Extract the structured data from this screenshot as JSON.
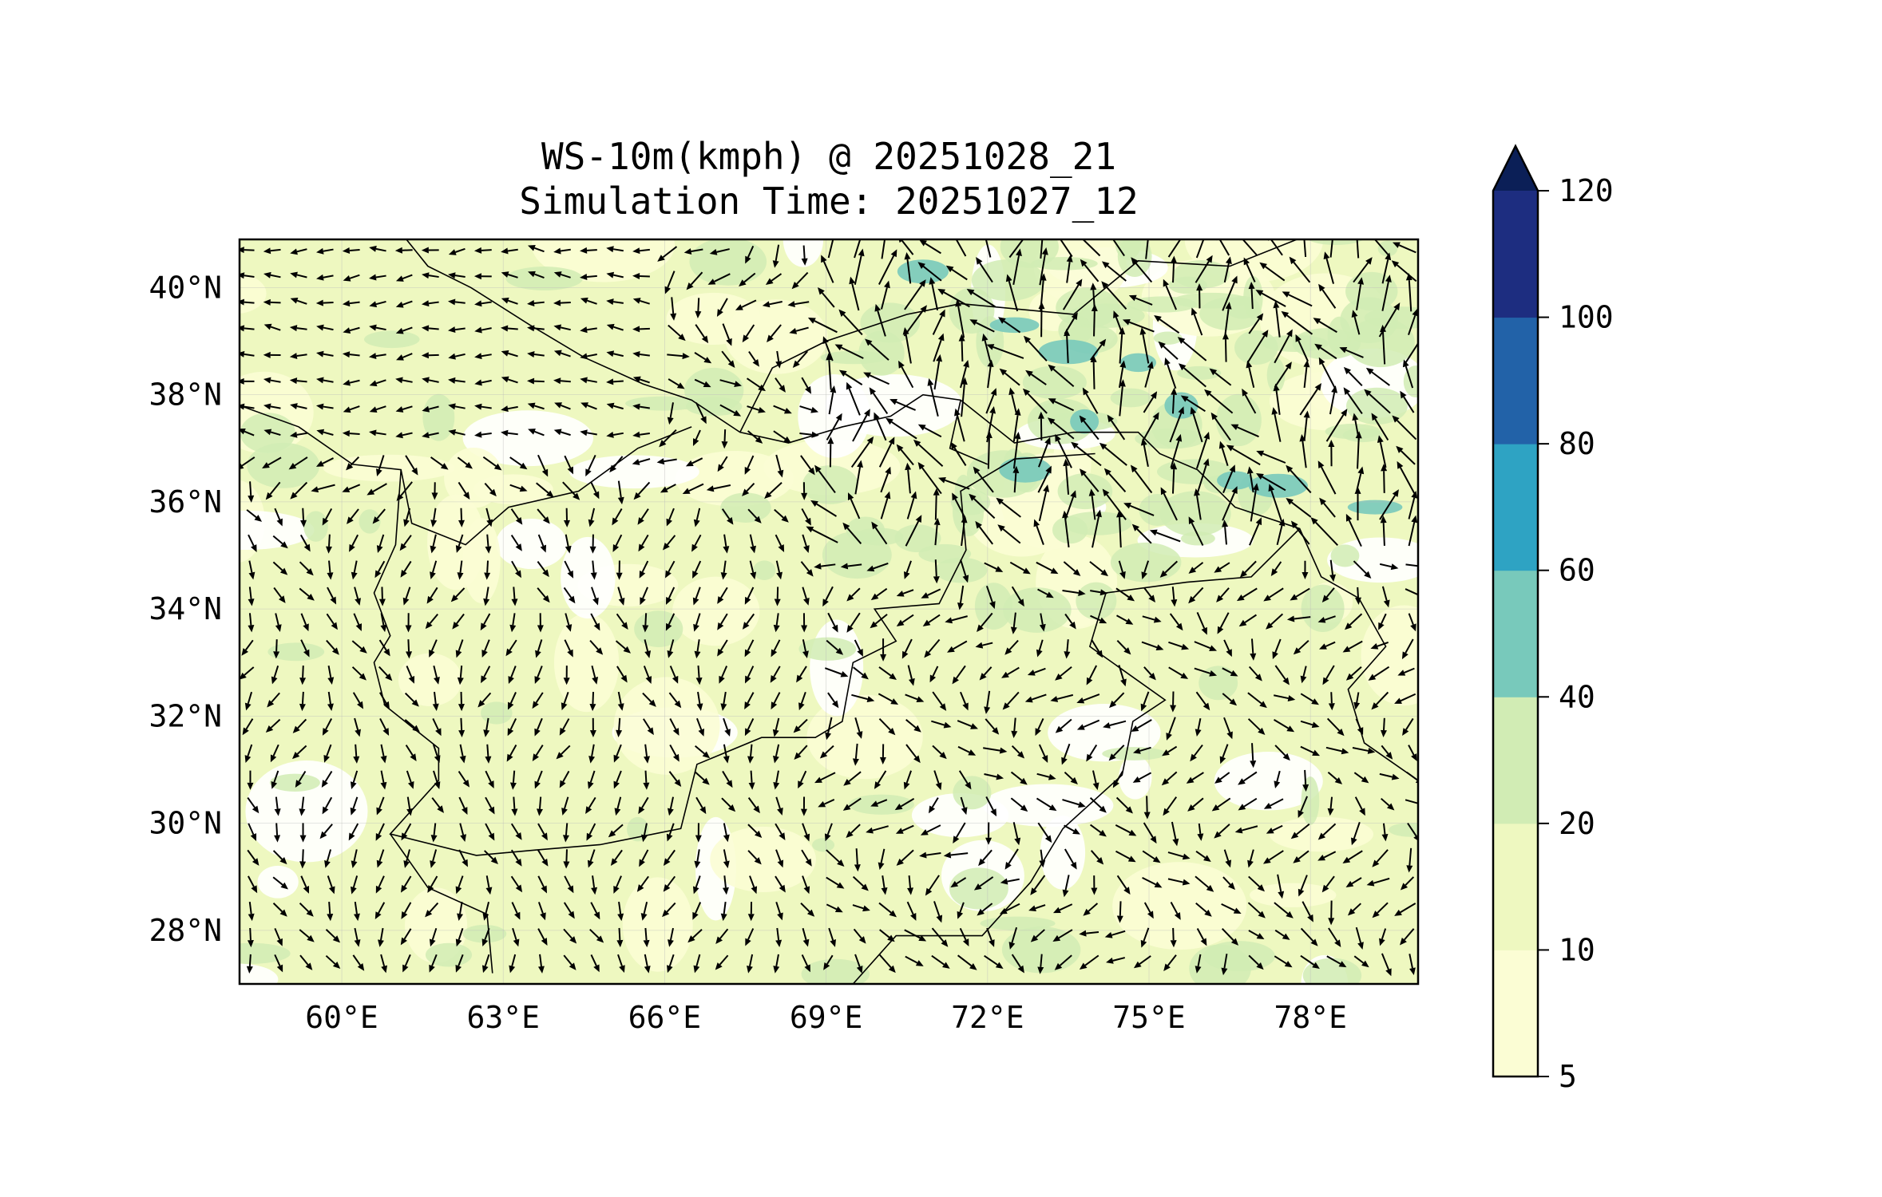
{
  "chart_data": {
    "type": "heatmap",
    "title": "WS-10m(kmph) @ 20251028_21",
    "subtitle": "Simulation Time: 20251027_12",
    "variable": "10 m wind speed (kmph) with wind vectors",
    "xlim": [
      58.1,
      80.0
    ],
    "ylim": [
      27.0,
      40.9
    ],
    "x_ticks": [
      60,
      63,
      66,
      69,
      72,
      75,
      78
    ],
    "x_tick_labels": [
      "60°E",
      "63°E",
      "66°E",
      "69°E",
      "72°E",
      "75°E",
      "78°E"
    ],
    "y_ticks": [
      28,
      30,
      32,
      34,
      36,
      38,
      40
    ],
    "y_tick_labels": [
      "28°N",
      "30°N",
      "32°N",
      "34°N",
      "36°N",
      "38°N",
      "40°N"
    ],
    "grid": true,
    "colorbar": {
      "placement": "right",
      "extend": "max",
      "levels": [
        5,
        10,
        20,
        40,
        60,
        80,
        100,
        120
      ],
      "level_labels": [
        "5",
        "10",
        "20",
        "40",
        "60",
        "80",
        "100",
        "120"
      ],
      "colors": [
        "#fbfdd4",
        "#eef8c0",
        "#d1ecb4",
        "#78c9bb",
        "#2ea3c3",
        "#2262a8",
        "#1d2d80"
      ],
      "extend_color": "#0b1f57"
    }
  }
}
